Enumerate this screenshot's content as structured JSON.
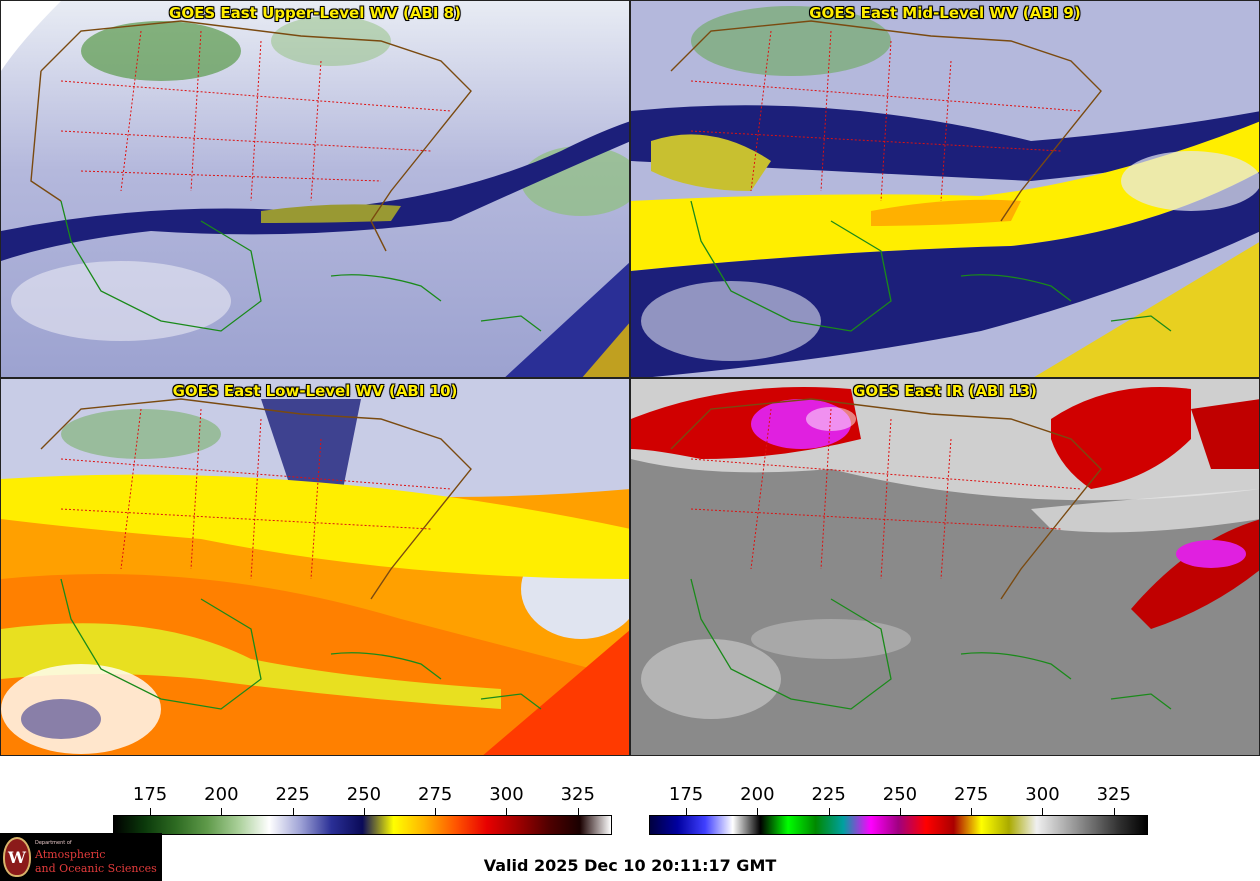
{
  "panels": [
    {
      "title": "GOES East Upper-Level WV (ABI 8)",
      "colormap": "wv"
    },
    {
      "title": "GOES East Mid-Level WV (ABI 9)",
      "colormap": "wv"
    },
    {
      "title": "GOES East Low-Level WV (ABI 10)",
      "colormap": "wv"
    },
    {
      "title": "GOES East IR (ABI 13)",
      "colormap": "ir"
    }
  ],
  "colorbars": {
    "wv": {
      "ticks": [
        "175",
        "200",
        "225",
        "250",
        "275",
        "300",
        "325"
      ],
      "range": [
        162,
        337
      ],
      "colors": [
        "#000000",
        "#0b3a0b",
        "#2e6b22",
        "#5f9a4a",
        "#a9cf98",
        "#ffffff",
        "#9fa3d6",
        "#2a2f96",
        "#0a0a58",
        "#ffff00",
        "#ffb300",
        "#ff5500",
        "#e80000",
        "#a00000",
        "#500000",
        "#1a0000",
        "#ffffff"
      ]
    },
    "ir": {
      "ticks": [
        "175",
        "200",
        "225",
        "250",
        "275",
        "300",
        "325"
      ],
      "range": [
        162,
        337
      ],
      "colors": [
        "#000040",
        "#0000a0",
        "#4040ff",
        "#ffffff",
        "#000000",
        "#00ff00",
        "#008800",
        "#00a0a0",
        "#ff00ff",
        "#a00080",
        "#ff0000",
        "#aa0000",
        "#ffff00",
        "#aaaa00",
        "#f0f0f0",
        "#b0b0b0",
        "#707070",
        "#303030",
        "#000000"
      ]
    }
  },
  "valid_text": "Valid 2025 Dec 10 20:11:17 GMT",
  "logo": {
    "seal_letter": "W",
    "dept": "Department of",
    "line1": "Atmospheric",
    "line2": "and Oceanic Sciences"
  }
}
